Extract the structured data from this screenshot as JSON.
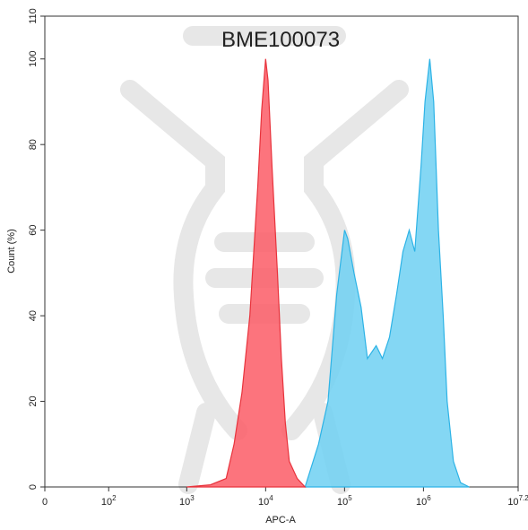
{
  "chart_data": {
    "type": "histogram-overlay",
    "title": "BME100073",
    "xlabel": "APC-A",
    "ylabel": "Count (%)",
    "xscale": "biexponential",
    "xlim": [
      0,
      15848932
    ],
    "ylim": [
      0,
      110
    ],
    "xticks": [
      0,
      {
        "value": 100,
        "label": "10",
        "sup": "2"
      },
      {
        "value": 1000,
        "label": "10",
        "sup": "3"
      },
      {
        "value": 10000,
        "label": "10",
        "sup": "4"
      },
      {
        "value": 100000,
        "label": "10",
        "sup": "5"
      },
      {
        "value": 1000000,
        "label": "10",
        "sup": "6"
      },
      {
        "value": 15848932,
        "label": "10",
        "sup": "7.2"
      }
    ],
    "yticks": [
      0,
      20,
      40,
      60,
      80,
      100,
      110
    ],
    "series": [
      {
        "color": "#2db3e6",
        "fill": "#6fd0f2",
        "x": [
          31623,
          46774,
          61660,
          79433,
          100000,
          109648,
          131826,
          162181,
          194984,
          251189,
          301995,
          371535,
          457088,
          549541,
          660693,
          776247,
          933254,
          1047129,
          1202264,
          1348963,
          1548817,
          1778279,
          1995262,
          2398833,
          2951209,
          3801894
        ],
        "values": [
          0,
          10,
          20,
          45,
          60,
          58,
          50,
          42,
          30,
          33,
          30,
          35,
          45,
          55,
          60,
          55,
          75,
          90,
          100,
          90,
          60,
          40,
          20,
          6,
          1,
          0
        ]
      },
      {
        "color": "#e8333c",
        "fill": "#fb5c66",
        "x": [
          1000,
          2000,
          3162,
          3548,
          3981,
          5012,
          6310,
          7943,
          8913,
          10000,
          10715,
          12023,
          14125,
          15849,
          17783,
          19953,
          25119,
          31623
        ],
        "values": [
          0,
          0.5,
          2,
          6,
          10,
          22,
          40,
          70,
          88,
          100,
          95,
          75,
          50,
          30,
          15,
          6,
          2,
          0
        ]
      }
    ]
  }
}
